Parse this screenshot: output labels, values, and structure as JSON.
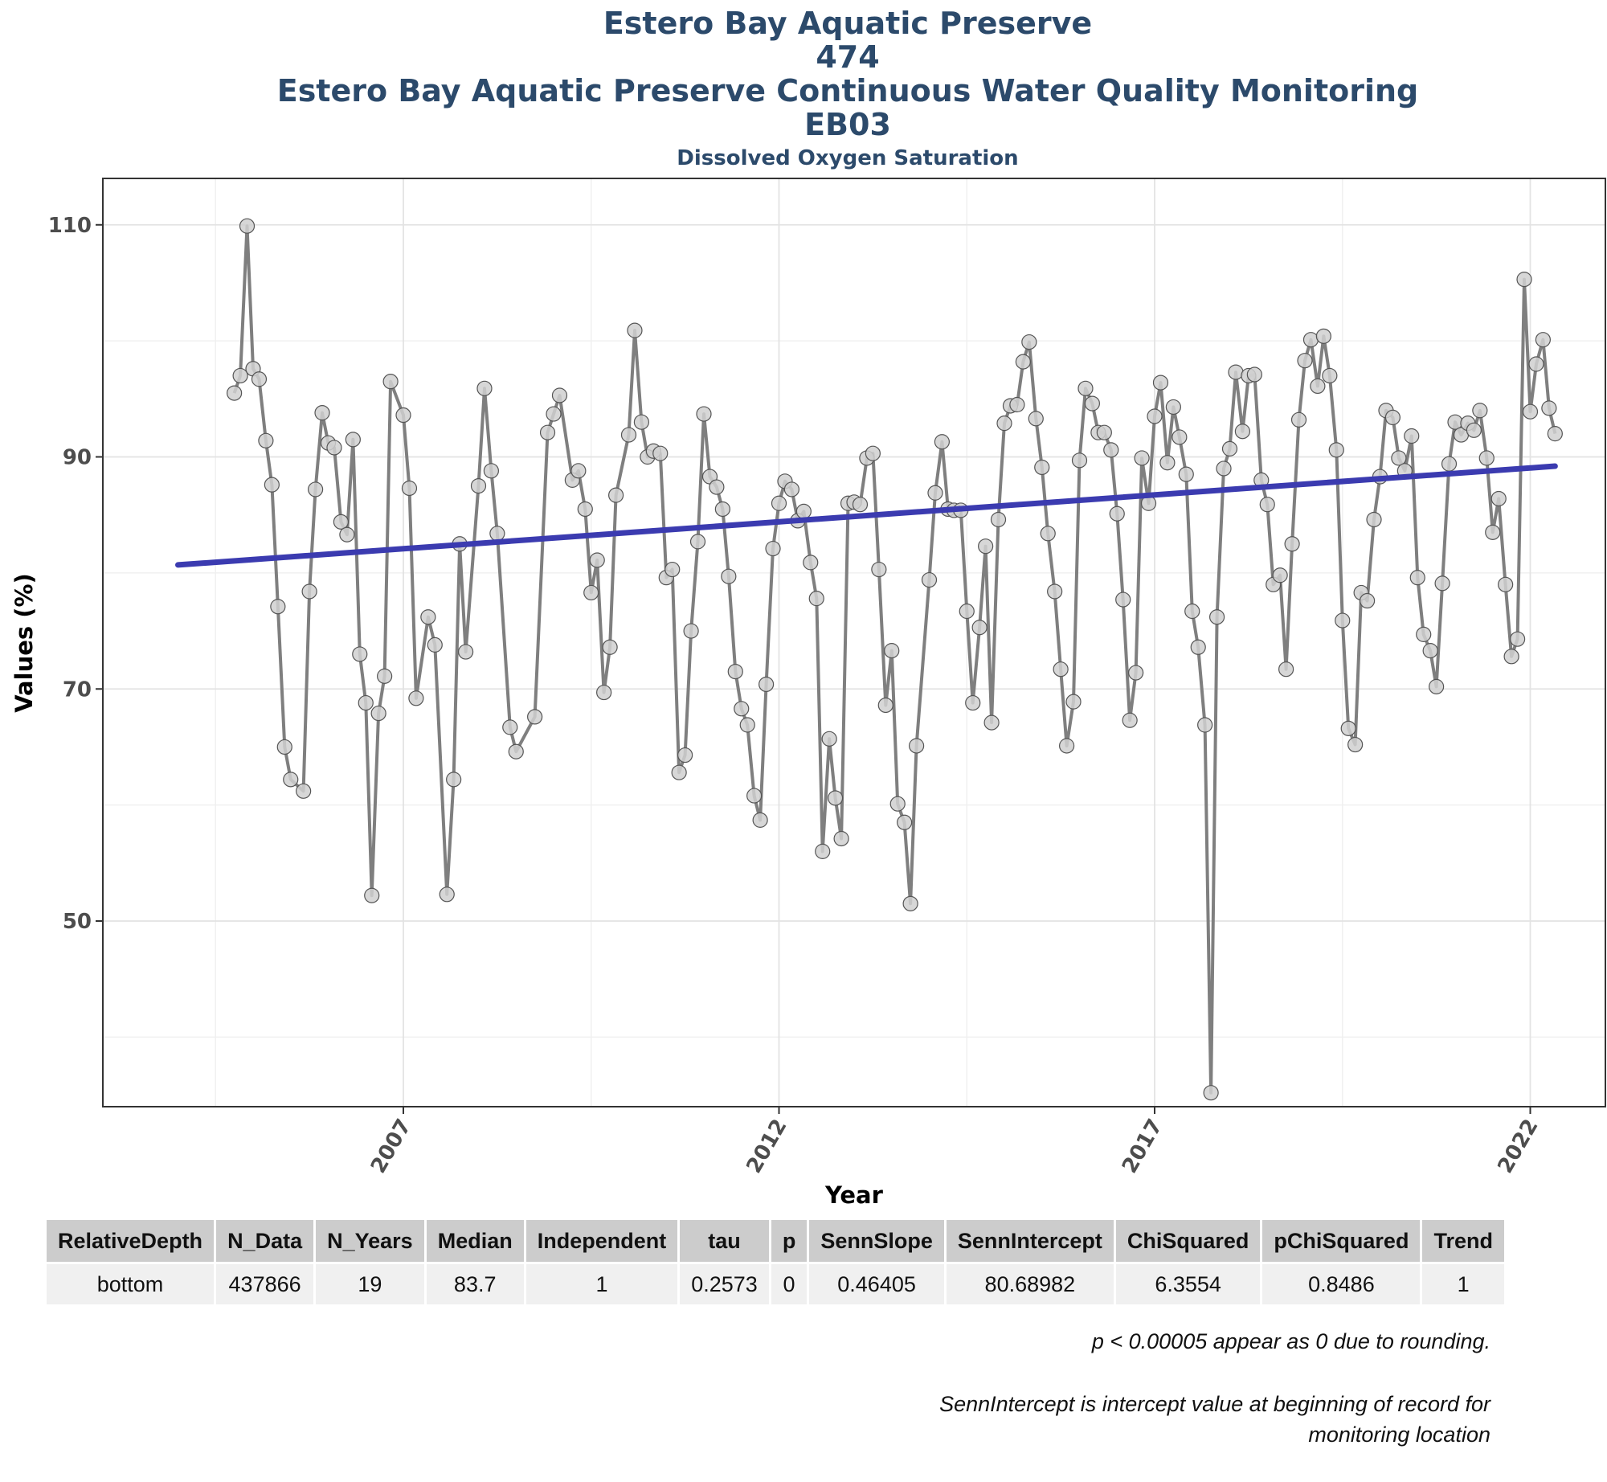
{
  "titles": {
    "line1": "Estero Bay Aquatic Preserve",
    "line2": "474",
    "line3": "Estero Bay Aquatic Preserve Continuous Water Quality Monitoring",
    "line4": "EB03",
    "subtitle": "Dissolved Oxygen Saturation"
  },
  "chart_data": {
    "type": "line",
    "xlabel": "Year",
    "ylabel": "Values (%)",
    "xlim": [
      2003.0,
      2023.0
    ],
    "ylim": [
      34,
      114
    ],
    "x_ticks": [
      2007,
      2012,
      2017,
      2022
    ],
    "y_ticks": [
      50,
      70,
      90,
      110
    ],
    "grid": true,
    "legend": "none",
    "series_color": "#7f7f7f",
    "point_fill": "#d0d0d0",
    "trend_color": "#3b3bb0",
    "series": [
      {
        "x": [
          2004.75,
          2004.83,
          2004.92,
          2005.0,
          2005.08,
          2005.17,
          2005.25,
          2005.33,
          2005.42,
          2005.5,
          2005.67,
          2005.75,
          2005.83,
          2005.92,
          2006.0,
          2006.08,
          2006.17,
          2006.25,
          2006.33,
          2006.42,
          2006.5,
          2006.58,
          2006.67,
          2006.75,
          2006.83,
          2007.0,
          2007.08,
          2007.17,
          2007.33,
          2007.42,
          2007.58,
          2007.67,
          2007.75,
          2007.83,
          2008.0,
          2008.08,
          2008.17,
          2008.25,
          2008.42,
          2008.5,
          2008.75,
          2008.92,
          2009.0,
          2009.08,
          2009.25,
          2009.33,
          2009.42,
          2009.5,
          2009.58,
          2009.67,
          2009.75,
          2009.83,
          2010.0,
          2010.08,
          2010.17,
          2010.25,
          2010.33,
          2010.42,
          2010.5,
          2010.58,
          2010.67,
          2010.75,
          2010.83,
          2010.92,
          2011.0,
          2011.08,
          2011.17,
          2011.25,
          2011.33,
          2011.42,
          2011.5,
          2011.58,
          2011.67,
          2011.75,
          2011.83,
          2011.92,
          2012.0,
          2012.08,
          2012.17,
          2012.25,
          2012.33,
          2012.42,
          2012.5,
          2012.58,
          2012.67,
          2012.75,
          2012.83,
          2012.92,
          2013.0,
          2013.08,
          2013.17,
          2013.25,
          2013.33,
          2013.42,
          2013.5,
          2013.58,
          2013.67,
          2013.75,
          2013.83,
          2014.0,
          2014.08,
          2014.17,
          2014.25,
          2014.33,
          2014.42,
          2014.5,
          2014.58,
          2014.67,
          2014.75,
          2014.83,
          2014.92,
          2015.0,
          2015.08,
          2015.17,
          2015.25,
          2015.33,
          2015.42,
          2015.5,
          2015.58,
          2015.67,
          2015.75,
          2015.83,
          2015.92,
          2016.0,
          2016.08,
          2016.17,
          2016.25,
          2016.33,
          2016.42,
          2016.5,
          2016.58,
          2016.67,
          2016.75,
          2016.83,
          2016.92,
          2017.0,
          2017.08,
          2017.17,
          2017.25,
          2017.33,
          2017.42,
          2017.5,
          2017.58,
          2017.67,
          2017.75,
          2017.83,
          2017.92,
          2018.0,
          2018.08,
          2018.17,
          2018.25,
          2018.33,
          2018.42,
          2018.5,
          2018.58,
          2018.67,
          2018.75,
          2018.83,
          2018.92,
          2019.0,
          2019.08,
          2019.17,
          2019.25,
          2019.33,
          2019.42,
          2019.5,
          2019.58,
          2019.67,
          2019.75,
          2019.83,
          2019.92,
          2020.0,
          2020.08,
          2020.17,
          2020.25,
          2020.33,
          2020.42,
          2020.5,
          2020.58,
          2020.67,
          2020.75,
          2020.83,
          2020.92,
          2021.0,
          2021.08,
          2021.17,
          2021.25,
          2021.33,
          2021.42,
          2021.5,
          2021.58,
          2021.67,
          2021.75,
          2021.83,
          2021.92,
          2022.0,
          2022.08,
          2022.17,
          2022.25,
          2022.33
        ],
        "y": [
          95.5,
          97.0,
          109.9,
          97.6,
          96.7,
          91.4,
          87.6,
          77.1,
          65.0,
          62.2,
          61.2,
          78.4,
          87.2,
          93.8,
          91.2,
          90.8,
          84.4,
          83.3,
          91.5,
          73.0,
          68.8,
          52.2,
          67.9,
          71.1,
          96.5,
          93.6,
          87.3,
          69.2,
          76.2,
          73.8,
          52.3,
          62.2,
          82.5,
          73.2,
          87.5,
          95.9,
          88.8,
          83.4,
          66.7,
          64.6,
          67.6,
          92.1,
          93.7,
          95.3,
          88.0,
          88.8,
          85.5,
          78.3,
          81.1,
          69.7,
          73.6,
          86.7,
          91.9,
          100.9,
          93.0,
          90.0,
          90.5,
          90.3,
          79.6,
          80.3,
          62.8,
          64.3,
          75.0,
          82.7,
          93.7,
          88.3,
          87.4,
          85.5,
          79.7,
          71.5,
          68.3,
          66.9,
          60.8,
          58.7,
          70.4,
          82.1,
          86.0,
          87.9,
          87.2,
          84.5,
          85.3,
          80.9,
          77.8,
          56.0,
          65.7,
          60.6,
          57.1,
          86.0,
          86.1,
          85.9,
          89.9,
          90.3,
          80.3,
          68.6,
          73.3,
          60.1,
          58.5,
          51.5,
          65.1,
          79.4,
          86.9,
          91.3,
          85.5,
          85.4,
          85.4,
          76.7,
          68.8,
          75.3,
          82.3,
          67.1,
          84.6,
          92.9,
          94.4,
          94.5,
          98.2,
          99.9,
          93.3,
          89.1,
          83.4,
          78.4,
          71.7,
          65.1,
          68.9,
          89.7,
          95.9,
          94.6,
          92.1,
          92.1,
          90.6,
          85.1,
          77.7,
          67.3,
          71.4,
          89.9,
          86.0,
          93.5,
          96.4,
          89.5,
          94.3,
          91.7,
          88.5,
          76.7,
          73.6,
          66.9,
          35.2,
          76.2,
          89.0,
          90.7,
          97.3,
          92.2,
          97.0,
          97.1,
          88.0,
          85.9,
          79.0,
          79.8,
          71.7,
          82.5,
          93.2,
          98.3,
          100.1,
          96.1,
          100.4,
          97.0,
          90.6,
          75.9,
          66.6,
          65.2,
          78.3,
          77.6,
          84.6,
          88.3,
          94.0,
          93.4,
          89.9,
          88.8,
          91.8,
          79.6,
          74.7,
          73.3,
          70.2,
          79.1,
          89.4,
          93.0,
          91.9,
          92.9,
          92.3,
          94.0,
          89.9,
          83.5,
          86.4,
          79.0,
          72.8,
          74.3,
          105.3,
          93.9,
          98.0,
          100.1,
          94.2,
          92.0
        ]
      }
    ],
    "trend": {
      "x": [
        2004.0,
        2022.33
      ],
      "y": [
        80.69,
        89.2
      ]
    }
  },
  "stats_table": {
    "headers": [
      "RelativeDepth",
      "N_Data",
      "N_Years",
      "Median",
      "Independent",
      "tau",
      "p",
      "SennSlope",
      "SennIntercept",
      "ChiSquared",
      "pChiSquared",
      "Trend"
    ],
    "row": [
      "bottom",
      "437866",
      "19",
      "83.7",
      "1",
      "0.2573",
      "0",
      "0.46405",
      "80.68982",
      "6.3554",
      "0.8486",
      "1"
    ]
  },
  "notes": {
    "note1": "p < 0.00005 appear as 0 due to rounding.",
    "note2": "SennIntercept is intercept value at beginning of record for monitoring location"
  }
}
